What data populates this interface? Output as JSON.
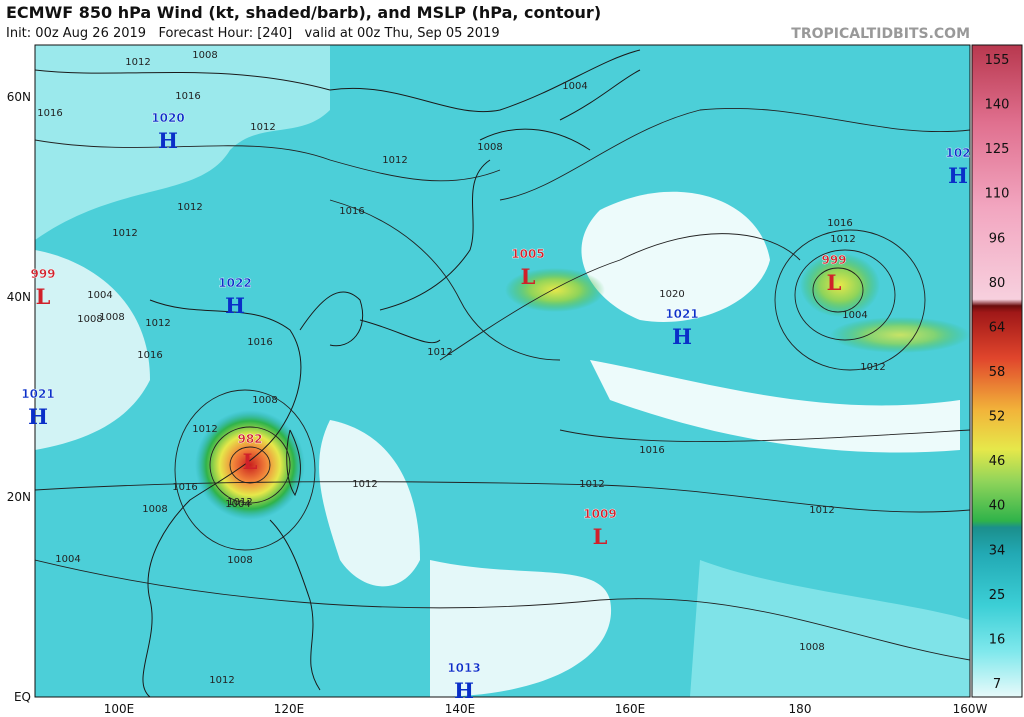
{
  "header": {
    "title": "ECMWF 850 hPa Wind (kt, shaded/barb), and MSLP (hPa, contour)",
    "subtitle": "Init: 00z Aug 26 2019   Forecast Hour: [240]   valid at 00z Thu, Sep 05 2019",
    "watermark": "TROPICALTIDBITS.COM"
  },
  "map": {
    "lat_labels": [
      "60N",
      "40N",
      "20N",
      "EQ"
    ],
    "lon_labels": [
      "100E",
      "120E",
      "140E",
      "160E",
      "180",
      "160W"
    ],
    "pressure_centers": [
      {
        "type": "H",
        "value": "1020"
      },
      {
        "type": "L",
        "value": "999"
      },
      {
        "type": "H",
        "value": "1022"
      },
      {
        "type": "H",
        "value": "1021"
      },
      {
        "type": "L",
        "value": "982"
      },
      {
        "type": "L",
        "value": "1005"
      },
      {
        "type": "H",
        "value": "1021"
      },
      {
        "type": "L",
        "value": "999"
      },
      {
        "type": "H",
        "value": "102"
      },
      {
        "type": "L",
        "value": "1009"
      },
      {
        "type": "H",
        "value": "1013"
      }
    ],
    "contour_labels": [
      "1012",
      "1008",
      "1016",
      "1012",
      "1016",
      "1012",
      "1004",
      "1008",
      "1012",
      "1016",
      "1012",
      "1008",
      "1004",
      "1008",
      "1012",
      "1016",
      "1004",
      "1012",
      "1008",
      "1012",
      "1016",
      "1012",
      "1016",
      "1012",
      "1008",
      "1004",
      "1016",
      "1012",
      "1008",
      "1004",
      "1012",
      "1020",
      "1016",
      "1012",
      "1012",
      "1008",
      "1012"
    ]
  },
  "colorbar": {
    "ticks": [
      155,
      140,
      125,
      110,
      96,
      80,
      64,
      58,
      52,
      46,
      40,
      34,
      25,
      16,
      7
    ]
  }
}
